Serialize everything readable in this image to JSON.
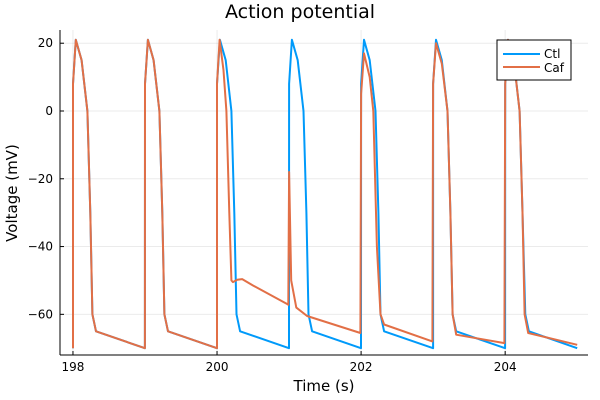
{
  "chart_data": {
    "type": "line",
    "title": "Action potential",
    "xlabel": "Time (s)",
    "ylabel": "Voltage (mV)",
    "xlim": [
      197.82,
      205.15
    ],
    "ylim": [
      -72,
      23.9
    ],
    "xticks": [
      198,
      200,
      202,
      204
    ],
    "yticks": [
      20,
      0,
      -20,
      -40,
      -60
    ],
    "grid": true,
    "legend": "top-right",
    "series": [
      {
        "name": "Ctl",
        "color": "#009AFA",
        "points": [
          [
            198.0,
            -70
          ],
          [
            198.001,
            8
          ],
          [
            198.04,
            21
          ],
          [
            198.12,
            15
          ],
          [
            198.2,
            0
          ],
          [
            198.24,
            -30
          ],
          [
            198.27,
            -60
          ],
          [
            198.32,
            -65
          ],
          [
            198.999,
            -70
          ],
          [
            199.0,
            8
          ],
          [
            199.04,
            21
          ],
          [
            199.12,
            15
          ],
          [
            199.2,
            0
          ],
          [
            199.24,
            -30
          ],
          [
            199.27,
            -60
          ],
          [
            199.32,
            -65
          ],
          [
            199.999,
            -70
          ],
          [
            200.0,
            8
          ],
          [
            200.04,
            21
          ],
          [
            200.12,
            15
          ],
          [
            200.2,
            0
          ],
          [
            200.24,
            -30
          ],
          [
            200.27,
            -60
          ],
          [
            200.32,
            -65
          ],
          [
            200.999,
            -70
          ],
          [
            201.0,
            8
          ],
          [
            201.04,
            21
          ],
          [
            201.12,
            15
          ],
          [
            201.2,
            0
          ],
          [
            201.24,
            -30
          ],
          [
            201.27,
            -60
          ],
          [
            201.32,
            -65
          ],
          [
            201.999,
            -70
          ],
          [
            202.0,
            8
          ],
          [
            202.04,
            21
          ],
          [
            202.12,
            15
          ],
          [
            202.2,
            0
          ],
          [
            202.24,
            -30
          ],
          [
            202.27,
            -60
          ],
          [
            202.32,
            -65
          ],
          [
            202.999,
            -70
          ],
          [
            203.0,
            8
          ],
          [
            203.04,
            21
          ],
          [
            203.12,
            15
          ],
          [
            203.2,
            0
          ],
          [
            203.24,
            -30
          ],
          [
            203.27,
            -60
          ],
          [
            203.32,
            -65
          ],
          [
            203.999,
            -70
          ],
          [
            204.0,
            8
          ],
          [
            204.04,
            21
          ],
          [
            204.12,
            15
          ],
          [
            204.2,
            0
          ],
          [
            204.24,
            -30
          ],
          [
            204.28,
            -60
          ],
          [
            204.33,
            -65
          ],
          [
            205.0,
            -70
          ]
        ]
      },
      {
        "name": "Caf",
        "color": "#E26F46",
        "points": [
          [
            198.0,
            -70
          ],
          [
            198.001,
            8
          ],
          [
            198.04,
            21
          ],
          [
            198.12,
            15
          ],
          [
            198.2,
            0
          ],
          [
            198.24,
            -30
          ],
          [
            198.27,
            -60
          ],
          [
            198.32,
            -65
          ],
          [
            198.999,
            -70
          ],
          [
            199.0,
            8
          ],
          [
            199.04,
            21
          ],
          [
            199.12,
            15
          ],
          [
            199.2,
            0
          ],
          [
            199.24,
            -30
          ],
          [
            199.27,
            -60
          ],
          [
            199.32,
            -65
          ],
          [
            199.999,
            -70
          ],
          [
            200.0,
            8
          ],
          [
            200.035,
            21
          ],
          [
            200.09,
            12
          ],
          [
            200.13,
            0
          ],
          [
            200.17,
            -30
          ],
          [
            200.2,
            -50
          ],
          [
            200.22,
            -50.5
          ],
          [
            200.28,
            -49.8
          ],
          [
            200.35,
            -49.6
          ],
          [
            200.5,
            -51.5
          ],
          [
            200.98,
            -57
          ],
          [
            200.99,
            -57.2
          ],
          [
            201.0,
            -18
          ],
          [
            201.03,
            -50
          ],
          [
            201.1,
            -58
          ],
          [
            201.25,
            -60.5
          ],
          [
            201.99,
            -65.5
          ],
          [
            202.0,
            5
          ],
          [
            202.04,
            17
          ],
          [
            202.12,
            10
          ],
          [
            202.17,
            0
          ],
          [
            202.22,
            -40
          ],
          [
            202.27,
            -60
          ],
          [
            202.32,
            -63
          ],
          [
            202.99,
            -68
          ],
          [
            203.0,
            8
          ],
          [
            203.04,
            20
          ],
          [
            203.12,
            14
          ],
          [
            203.2,
            0
          ],
          [
            203.24,
            -30
          ],
          [
            203.27,
            -60
          ],
          [
            203.32,
            -66
          ],
          [
            203.99,
            -68.5
          ],
          [
            204.0,
            8
          ],
          [
            204.04,
            21
          ],
          [
            204.12,
            15
          ],
          [
            204.2,
            0
          ],
          [
            204.24,
            -30
          ],
          [
            204.27,
            -60
          ],
          [
            204.32,
            -65.5
          ],
          [
            205.0,
            -69
          ]
        ]
      }
    ]
  }
}
